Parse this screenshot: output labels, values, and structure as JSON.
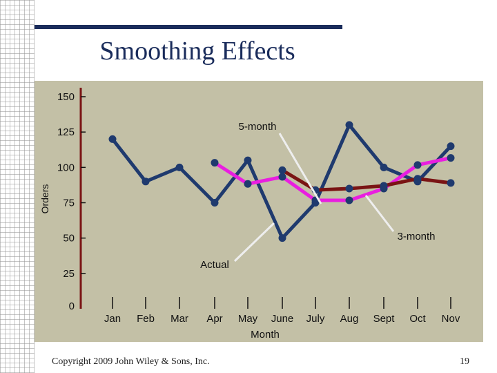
{
  "slide": {
    "title": "Smoothing Effects",
    "footer": "Copyright 2009 John Wiley & Sons, Inc.",
    "page_number": "19"
  },
  "chart_data": {
    "type": "line",
    "title": "Smoothing Effects",
    "xlabel": "Month",
    "ylabel": "Orders",
    "ylim": [
      0,
      150
    ],
    "yticks": [
      0,
      25,
      50,
      75,
      100,
      125,
      150
    ],
    "categories": [
      "Jan",
      "Feb",
      "Mar",
      "Apr",
      "May",
      "June",
      "July",
      "Aug",
      "Sept",
      "Oct",
      "Nov"
    ],
    "series": [
      {
        "name": "Actual",
        "color": "#1f3a6e",
        "values": [
          120,
          90,
          100,
          75,
          105,
          50,
          75,
          130,
          100,
          90,
          115
        ]
      },
      {
        "name": "3-month",
        "color": "#e91ee0",
        "values": [
          null,
          null,
          null,
          103.3,
          88.3,
          93.3,
          76.7,
          76.7,
          85.0,
          101.7,
          106.7
        ]
      },
      {
        "name": "5-month",
        "color": "#7a1414",
        "values": [
          null,
          null,
          null,
          null,
          null,
          98.0,
          84.0,
          85.0,
          87.0,
          92.0,
          89.0
        ]
      }
    ],
    "annotations": [
      {
        "label": "5-month",
        "points_to": "5-month"
      },
      {
        "label": "3-month",
        "points_to": "3-month"
      },
      {
        "label": "Actual",
        "points_to": "Actual"
      }
    ]
  }
}
